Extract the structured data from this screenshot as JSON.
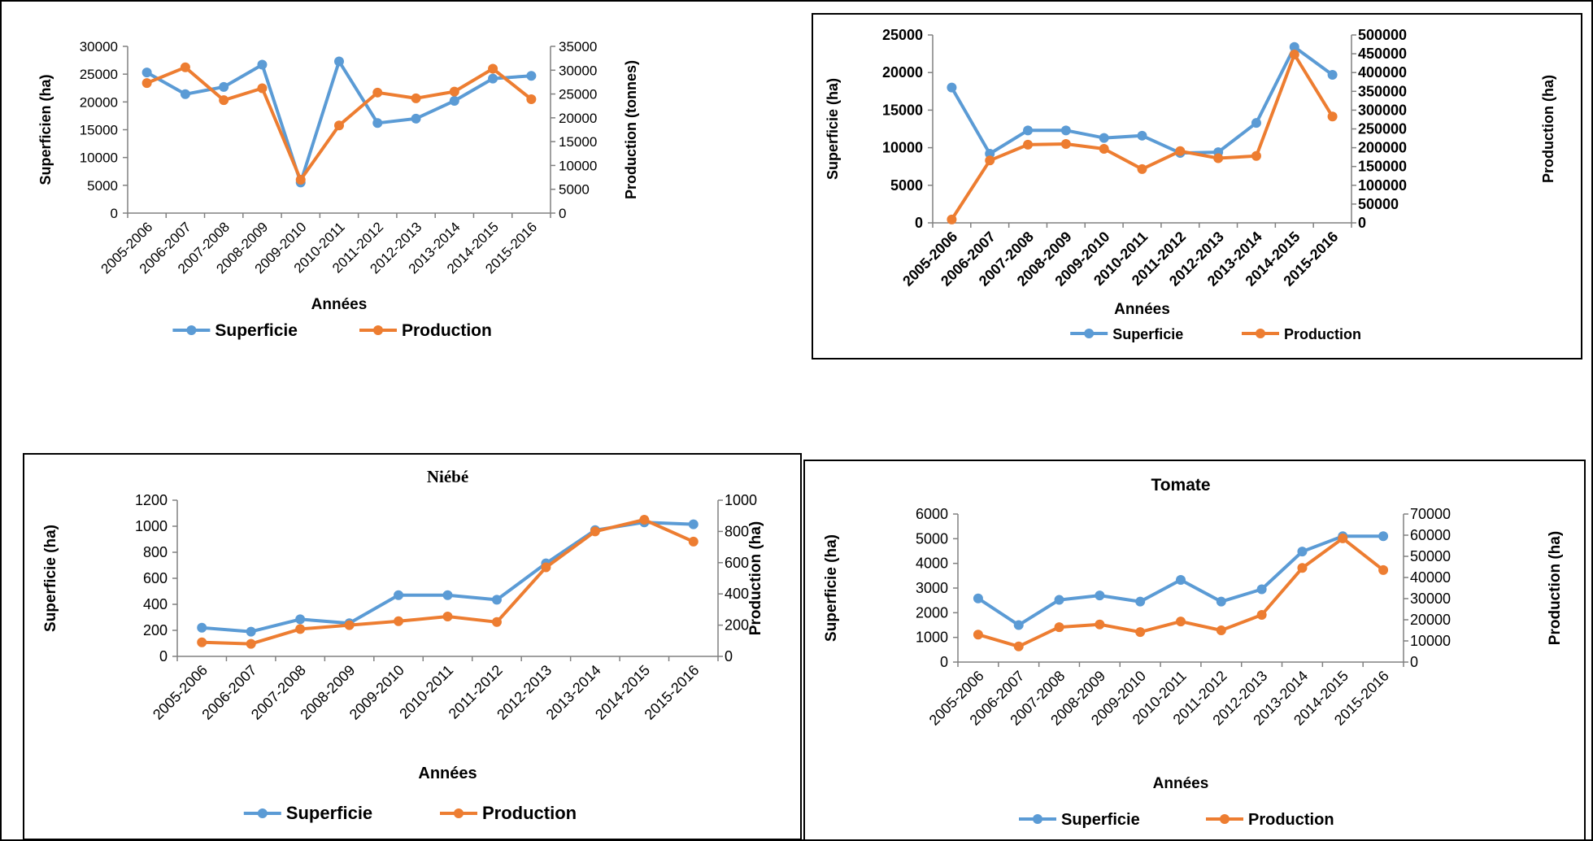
{
  "colors": {
    "superficie": "#5B9BD5",
    "production": "#ED7D31",
    "axis": "#808080"
  },
  "chart_data": [
    {
      "type": "line",
      "title": "",
      "xlabel": "Années",
      "ylabel": "Superficien (ha)",
      "y2label": "Production (tonnes)",
      "categories": [
        "2005-2006",
        "2006-2007",
        "2007-2008",
        "2008-2009",
        "2009-2010",
        "2010-2011",
        "2011-2012",
        "2012-2013",
        "2013-2014",
        "2014-2015",
        "2015-2016"
      ],
      "ylim": [
        0,
        30000
      ],
      "yticks": [
        "0",
        "5000",
        "10000",
        "15000",
        "20000",
        "25000",
        "30000"
      ],
      "y2lim": [
        0,
        35000
      ],
      "y2ticks": [
        "0",
        "5000",
        "10000",
        "15000",
        "20000",
        "25000",
        "30000",
        "35000"
      ],
      "series": [
        {
          "name": "Superficie",
          "axis": "left",
          "values": [
            25300,
            21400,
            22700,
            26700,
            5500,
            27300,
            16200,
            17000,
            20200,
            24200,
            24700
          ]
        },
        {
          "name": "Production",
          "axis": "right",
          "values": [
            27300,
            30600,
            23700,
            26200,
            7000,
            18400,
            25300,
            24100,
            25500,
            30300,
            23900
          ]
        }
      ],
      "legend": "bottom",
      "grid": false,
      "bold_ticks": false
    },
    {
      "type": "line",
      "title": "",
      "xlabel": "Années",
      "ylabel": "Superficie (ha)",
      "y2label": "Production (ha)",
      "categories": [
        "2005-2006",
        "2006-2007",
        "2007-2008",
        "2008-2009",
        "2009-2010",
        "2010-2011",
        "2011-2012",
        "2012-2013",
        "2013-2014",
        "2014-2015",
        "2015-2016"
      ],
      "ylim": [
        0,
        25000
      ],
      "yticks": [
        "0",
        "5000",
        "10000",
        "15000",
        "20000",
        "25000"
      ],
      "y2lim": [
        0,
        500000
      ],
      "y2ticks": [
        "0",
        "50000",
        "100000",
        "150000",
        "200000",
        "250000",
        "300000",
        "350000",
        "400000",
        "450000",
        "500000"
      ],
      "series": [
        {
          "name": "Superficie",
          "axis": "left",
          "values": [
            18000,
            9200,
            12300,
            12300,
            11300,
            11600,
            9300,
            9400,
            13300,
            23400,
            19700
          ]
        },
        {
          "name": "Production",
          "axis": "right",
          "values": [
            9000,
            166000,
            208000,
            210000,
            197000,
            143000,
            191000,
            172000,
            178000,
            448000,
            283000
          ]
        }
      ],
      "legend": "bottom",
      "grid": false,
      "bold_ticks": true
    },
    {
      "type": "line",
      "title": "Niébé",
      "xlabel": "Années",
      "ylabel": "Superficie (ha)",
      "y2label": "Production (ha)",
      "categories": [
        "2005-2006",
        "2006-2007",
        "2007-2008",
        "2008-2009",
        "2009-2010",
        "2010-2011",
        "2011-2012",
        "2012-2013",
        "2013-2014",
        "2014-2015",
        "2015-2016"
      ],
      "ylim": [
        0,
        1200
      ],
      "yticks": [
        "0",
        "200",
        "400",
        "600",
        "800",
        "1000",
        "1200"
      ],
      "y2lim": [
        0,
        1000
      ],
      "y2ticks": [
        "0",
        "200",
        "400",
        "600",
        "800",
        "1000"
      ],
      "series": [
        {
          "name": "Superficie",
          "axis": "left",
          "values": [
            220,
            190,
            285,
            255,
            470,
            470,
            435,
            715,
            970,
            1030,
            1015
          ]
        },
        {
          "name": "Production",
          "axis": "right",
          "values": [
            90,
            80,
            175,
            200,
            225,
            255,
            220,
            570,
            800,
            875,
            735
          ]
        }
      ],
      "legend": "bottom",
      "grid": false,
      "bold_ticks": false
    },
    {
      "type": "line",
      "title": "Tomate",
      "xlabel": "Années",
      "ylabel": "Superficie (ha)",
      "y2label": "Production (ha)",
      "categories": [
        "2005-2006",
        "2006-2007",
        "2007-2008",
        "2008-2009",
        "2009-2010",
        "2010-2011",
        "2011-2012",
        "2012-2013",
        "2013-2014",
        "2014-2015",
        "2015-2016"
      ],
      "ylim": [
        0,
        6000
      ],
      "yticks": [
        "0",
        "1000",
        "2000",
        "3000",
        "4000",
        "5000",
        "6000"
      ],
      "y2lim": [
        0,
        70000
      ],
      "y2ticks": [
        "0",
        "10000",
        "20000",
        "30000",
        "40000",
        "50000",
        "60000",
        "70000"
      ],
      "series": [
        {
          "name": "Superficie",
          "axis": "left",
          "values": [
            2580,
            1500,
            2520,
            2700,
            2450,
            3330,
            2450,
            2950,
            4480,
            5100,
            5100
          ]
        },
        {
          "name": "Production",
          "axis": "right",
          "values": [
            13000,
            7400,
            16500,
            17800,
            14200,
            19200,
            15000,
            22300,
            44500,
            58500,
            43500
          ]
        }
      ],
      "legend": "bottom",
      "grid": false,
      "bold_ticks": false
    }
  ]
}
